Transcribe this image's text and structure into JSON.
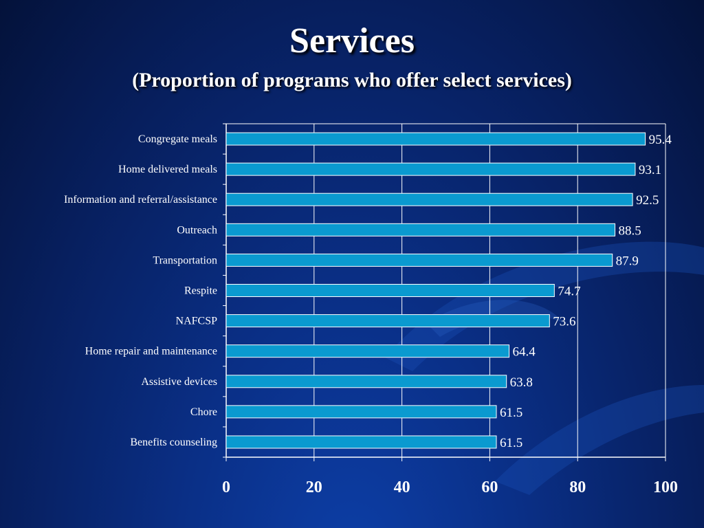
{
  "slide": {
    "title": "Services",
    "subtitle": "(Proportion of programs who offer select services)"
  },
  "chart_data": {
    "type": "bar",
    "orientation": "horizontal",
    "title": "",
    "xlabel": "",
    "ylabel": "",
    "categories": [
      "Congregate meals",
      "Home delivered meals",
      "Information and referral/assistance",
      "Outreach",
      "Transportation",
      "Respite",
      "NAFCSP",
      "Home repair and maintenance",
      "Assistive devices",
      "Chore",
      "Benefits counseling"
    ],
    "values": [
      95.4,
      93.1,
      92.5,
      88.5,
      87.9,
      74.7,
      73.6,
      64.4,
      63.8,
      61.5,
      61.5
    ],
    "value_labels": [
      "95.4",
      "93.1",
      "92.5",
      "88.5",
      "87.9",
      "74.7",
      "73.6",
      "64.4",
      "63.8",
      "61.5",
      "61.5"
    ],
    "xlim": [
      0,
      100
    ],
    "xticks": [
      0,
      20,
      40,
      60,
      80,
      100
    ],
    "xtick_labels": [
      "0",
      "20",
      "40",
      "60",
      "80",
      "100"
    ],
    "grid": true,
    "legend": "none",
    "colors": {
      "bar_fill": "#0a9ad0",
      "bar_stroke": "#ffffff",
      "axis": "#ffffff",
      "grid": "#ffffff"
    }
  }
}
